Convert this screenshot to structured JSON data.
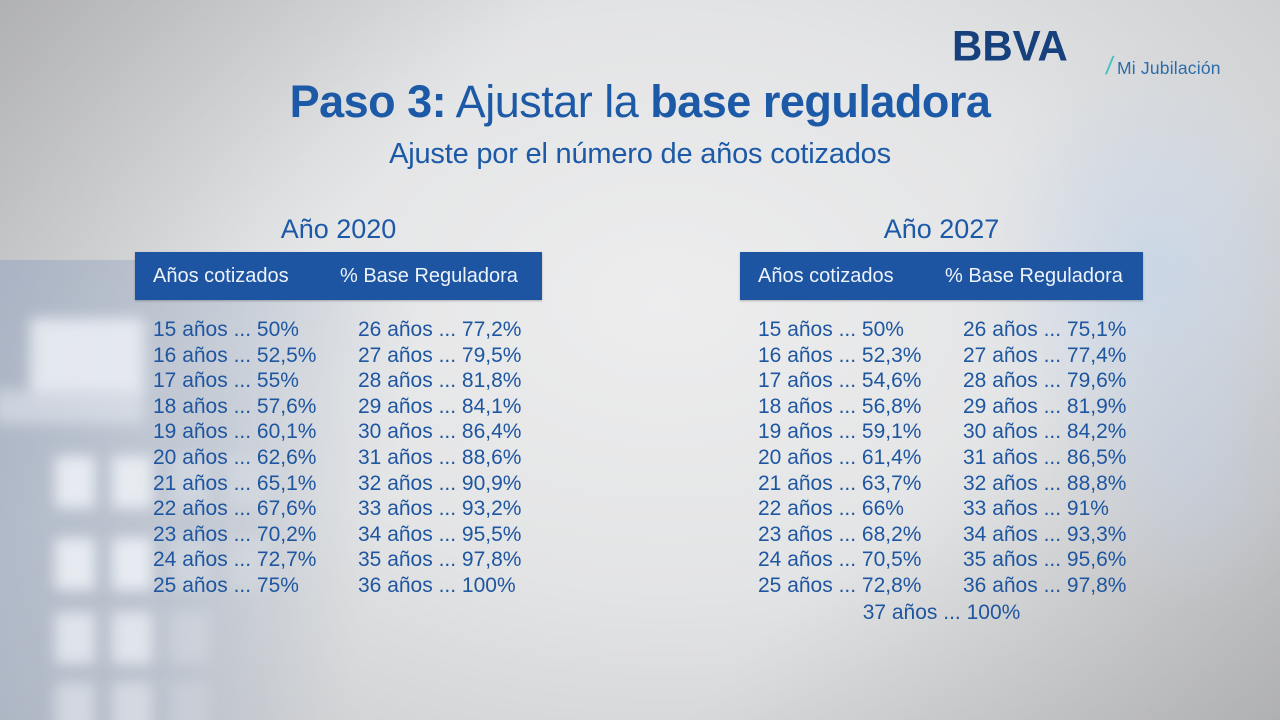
{
  "brand": {
    "logo": "BBVA",
    "slash": "/",
    "product": "Mi Jubilación"
  },
  "title": {
    "part1": "Paso 3:",
    "part2": " Ajustar la ",
    "part3": "base reguladora",
    "subtitle": "Ajuste por el número de años cotizados"
  },
  "tables": [
    {
      "year": "Año 2020",
      "headers": {
        "col1": "Años cotizados",
        "col2": "% Base Reguladora"
      },
      "col1_rows": [
        "15 años ... 50%",
        "16 años ... 52,5%",
        "17 años ... 55%",
        "18 años ... 57,6%",
        "19 años ... 60,1%",
        "20 años ... 62,6%",
        "21 años ... 65,1%",
        "22 años ... 67,6%",
        "23 años ... 70,2%",
        "24 años ... 72,7%",
        "25 años ... 75%"
      ],
      "col2_rows": [
        "26 años ... 77,2%",
        "27 años ... 79,5%",
        "28 años ... 81,8%",
        "29 años ... 84,1%",
        "30 años ... 86,4%",
        "31 años ... 88,6%",
        "32 años ... 90,9%",
        "33 años ... 93,2%",
        "34 años ... 95,5%",
        "35 años ... 97,8%",
        "36 años ... 100%"
      ]
    },
    {
      "year": "Año 2027",
      "headers": {
        "col1": "Años cotizados",
        "col2": "% Base Reguladora"
      },
      "col1_rows": [
        "15 años ... 50%",
        "16 años ... 52,3%",
        "17 años ... 54,6%",
        "18 años ... 56,8%",
        "19 años ... 59,1%",
        "20 años ... 61,4%",
        "21 años ... 63,7%",
        "22 años ... 66%",
        "23 años ... 68,2%",
        "24 años ... 70,5%",
        "25 años ... 72,8%"
      ],
      "col2_rows": [
        "26 años ... 75,1%",
        "27 años ... 77,4%",
        "28 años ... 79,6%",
        "29 años ... 81,9%",
        "30 años ... 84,2%",
        "31 años ... 86,5%",
        "32 años ... 88,8%",
        "33 años ... 91%",
        "34 años ... 93,3%",
        "35 años ... 95,6%",
        "36 años ... 97,8%"
      ],
      "footer": "37 años ... 100%"
    }
  ],
  "colors": {
    "header_bar_blue": "#1d55a3",
    "title_blue": "#1c59a6",
    "row_text_blue": "#1e56a0",
    "logo_navy": "#17417c",
    "slash_teal": "#3fc3c0",
    "product_blue": "#2d6ca8"
  }
}
